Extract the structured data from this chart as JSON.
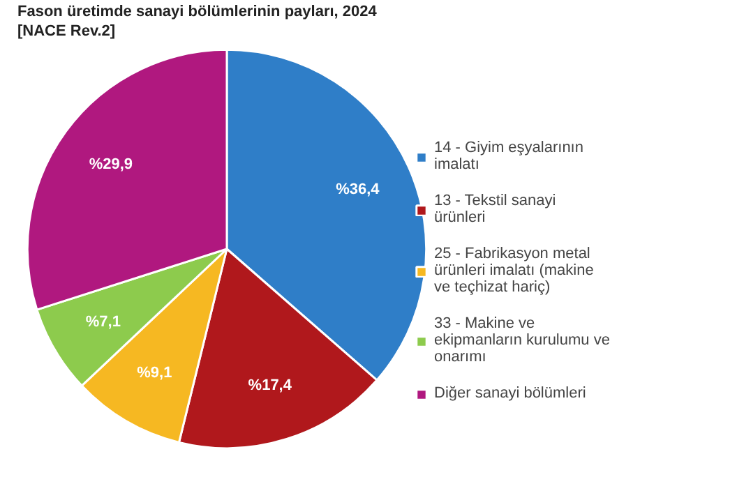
{
  "chart_data": {
    "type": "pie",
    "title": "Fason üretimde sanayi bölümlerinin payları, 2024",
    "subtitle": "[NACE Rev.2]",
    "categories": [
      "14 - Giyim eşyalarının imalatı",
      "13 - Tekstil sanayi ürünleri",
      "25 - Fabrikasyon metal ürünleri imalatı (makine ve teçhizat hariç)",
      "33 - Makine ve ekipmanların kurulumu ve onarımı",
      "Diğer sanayi bölümleri"
    ],
    "values": [
      36.4,
      17.4,
      9.1,
      7.1,
      29.9
    ],
    "colors": [
      "#2f7ec8",
      "#b0181c",
      "#f6b822",
      "#8dcb4d",
      "#b0187f"
    ],
    "value_labels": [
      "%36,4",
      "%17,4",
      "%9,1",
      "%7,1",
      "%29,9"
    ],
    "legend": "right"
  }
}
